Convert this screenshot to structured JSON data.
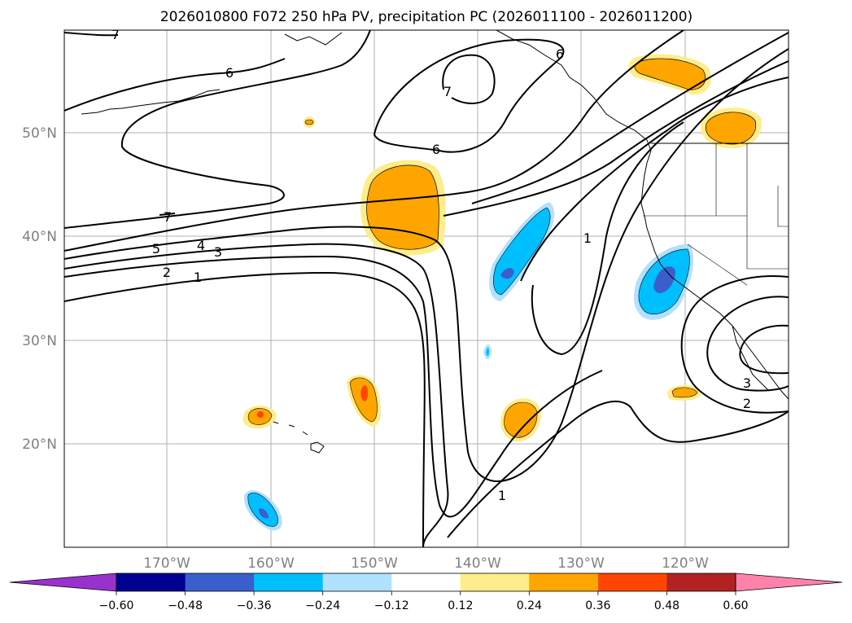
{
  "title": "2026010800 F072 250 hPa PV, precipitation PC (2026011100 - 2026011200)",
  "map": {
    "lat_labels": [
      "50°N",
      "40°N",
      "30°N",
      "20°N"
    ],
    "lon_labels": [
      "170°W",
      "160°W",
      "150°W",
      "140°W",
      "130°W",
      "120°W"
    ],
    "lat_range": [
      10,
      60
    ],
    "lon_range": [
      -180,
      -110
    ],
    "grid": true
  },
  "contour_labels": [
    "7",
    "6",
    "6",
    "6",
    "5",
    "4",
    "3",
    "2",
    "1",
    "1",
    "7",
    "7",
    "3",
    "2",
    "1"
  ],
  "colorbar": {
    "tick_labels": [
      "−0.60",
      "−0.48",
      "−0.36",
      "−0.24",
      "−0.12",
      "0.12",
      "0.24",
      "0.36",
      "0.48",
      "0.60"
    ],
    "colors": [
      "#9932cc",
      "#000090",
      "#3a5fcd",
      "#00bfff",
      "#b0e2ff",
      "#ffffff",
      "#ffec8b",
      "#ffa500",
      "#ff4500",
      "#b22222",
      "#ff82ab"
    ],
    "extend": "both"
  }
}
